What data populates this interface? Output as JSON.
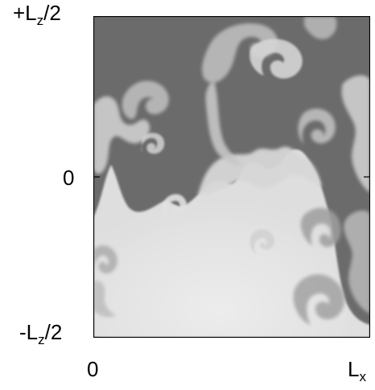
{
  "figure": {
    "y_top_label": {
      "pre": "+L",
      "sub": "z",
      "post": "/2"
    },
    "y_mid_label": "0",
    "y_bot_label": {
      "pre": "-L",
      "sub": "z",
      "post": "/2"
    },
    "x_left_label": "0",
    "x_right_label": {
      "pre": "L",
      "sub": "x"
    },
    "colors": {
      "dark_fluid": "#6a6a6a",
      "light_fluid": "#e6e6e6",
      "frame": "#000000"
    }
  }
}
